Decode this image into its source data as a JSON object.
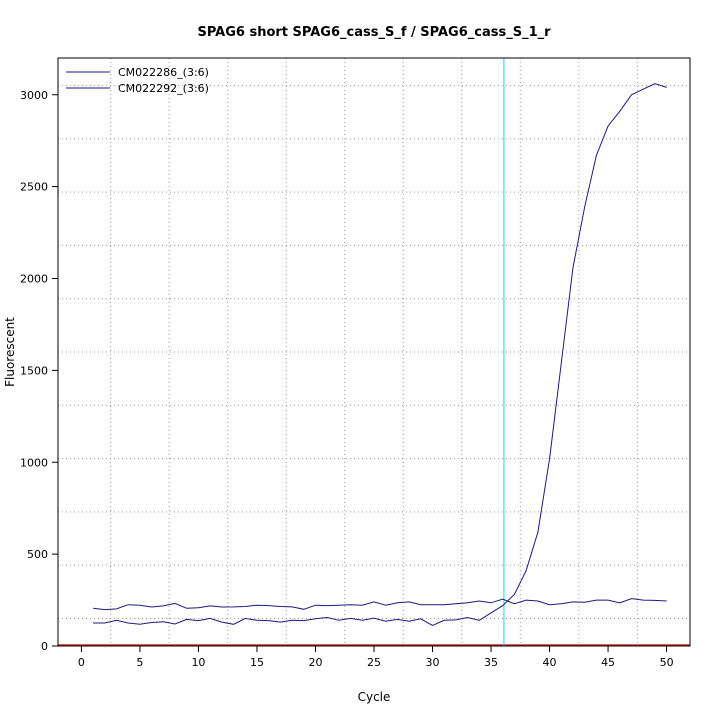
{
  "chart_data": {
    "type": "line",
    "title": "SPAG6 short SPAG6_cass_S_f / SPAG6_cass_S_1_r",
    "xlabel": "Cycle",
    "ylabel": "Fluorescent",
    "xlim": [
      -2,
      52
    ],
    "ylim": [
      0,
      3200
    ],
    "x_ticks": [
      0,
      5,
      10,
      15,
      20,
      25,
      30,
      35,
      40,
      45,
      50
    ],
    "y_ticks": [
      0,
      500,
      1000,
      1500,
      2000,
      2500,
      3000
    ],
    "grid": true,
    "legend_position": "top-left",
    "threshold_cycle": 36.1,
    "colors": {
      "series": "#1a1a80",
      "threshold": "#33e0e8",
      "baseline": "#c62828",
      "grid": "#999999"
    },
    "series": [
      {
        "name": "CM022286_(3:6)",
        "x": [
          1,
          2,
          3,
          4,
          5,
          6,
          7,
          8,
          9,
          10,
          11,
          12,
          13,
          14,
          15,
          16,
          17,
          18,
          19,
          20,
          21,
          22,
          23,
          24,
          25,
          26,
          27,
          28,
          29,
          30,
          31,
          32,
          33,
          34,
          35,
          36,
          37,
          38,
          39,
          40,
          41,
          42,
          43,
          44,
          45,
          46,
          47,
          48,
          49,
          50
        ],
        "y": [
          125,
          125,
          140,
          125,
          118,
          128,
          132,
          120,
          145,
          138,
          150,
          130,
          118,
          150,
          140,
          138,
          130,
          140,
          138,
          148,
          155,
          140,
          150,
          140,
          152,
          135,
          145,
          135,
          148,
          112,
          140,
          142,
          155,
          140,
          180,
          220,
          280,
          410,
          620,
          1020,
          1540,
          2060,
          2390,
          2670,
          2830,
          2910,
          3000,
          3030,
          3060,
          3040
        ]
      },
      {
        "name": "CM022292_(3:6)",
        "x": [
          1,
          2,
          3,
          4,
          5,
          6,
          7,
          8,
          9,
          10,
          11,
          12,
          13,
          14,
          15,
          16,
          17,
          18,
          19,
          20,
          21,
          22,
          23,
          24,
          25,
          26,
          27,
          28,
          29,
          30,
          31,
          32,
          33,
          34,
          35,
          36,
          37,
          38,
          39,
          40,
          41,
          42,
          43,
          44,
          45,
          46,
          47,
          48,
          49,
          50
        ],
        "y": [
          205,
          198,
          202,
          225,
          222,
          212,
          218,
          232,
          205,
          208,
          218,
          212,
          213,
          215,
          222,
          220,
          215,
          213,
          200,
          222,
          220,
          222,
          224,
          222,
          240,
          222,
          235,
          240,
          225,
          225,
          225,
          230,
          235,
          245,
          235,
          255,
          230,
          250,
          245,
          225,
          230,
          240,
          238,
          250,
          250,
          235,
          258,
          250,
          248,
          245
        ]
      }
    ]
  }
}
